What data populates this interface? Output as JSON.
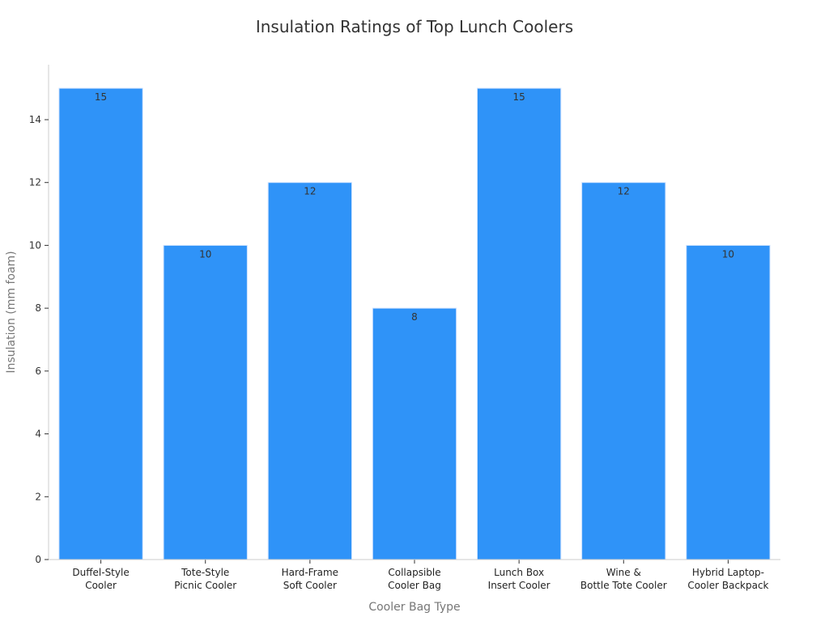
{
  "chart_data": {
    "type": "bar",
    "title": "Insulation Ratings of Top Lunch Coolers",
    "xlabel": "Cooler Bag Type",
    "ylabel": "Insulation (mm foam)",
    "categories": [
      [
        "Duffel-Style",
        "Cooler"
      ],
      [
        "Tote-Style",
        "Picnic Cooler"
      ],
      [
        "Hard-Frame",
        "Soft Cooler"
      ],
      [
        "Collapsible",
        "Cooler Bag"
      ],
      [
        "Lunch Box",
        "Insert Cooler"
      ],
      [
        "Wine &",
        "Bottle Tote Cooler"
      ],
      [
        "Hybrid Laptop-",
        "Cooler Backpack"
      ]
    ],
    "values": [
      15,
      10,
      12,
      8,
      15,
      12,
      10
    ],
    "ylim": [
      0,
      15.75
    ],
    "yticks": [
      0,
      2,
      4,
      6,
      8,
      10,
      12,
      14
    ],
    "bar_color": "#2f93f8",
    "grid": false
  }
}
